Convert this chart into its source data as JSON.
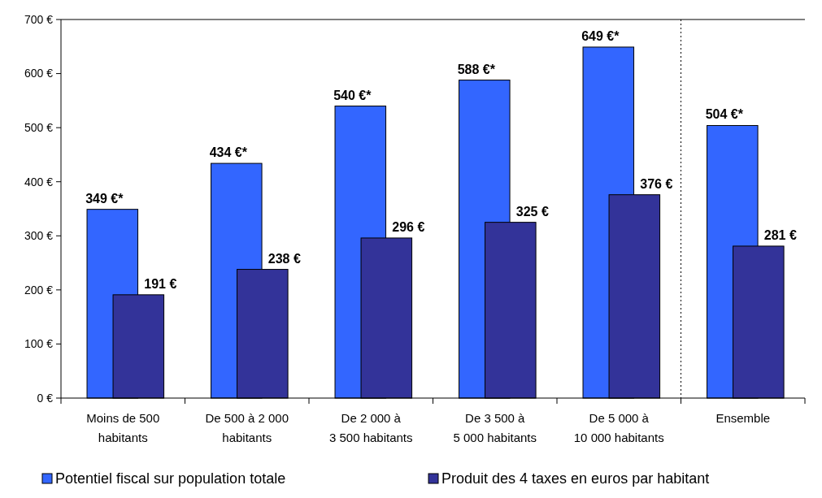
{
  "chart_data": {
    "type": "bar",
    "categories": [
      "Moins de 500\nhabitants",
      "De 500 à 2 000\nhabitants",
      "De 2 000 à\n3 500 habitants",
      "De 3 500 à\n5 000 habitants",
      "De 5 000 à\n10 000 habitants",
      "Ensemble"
    ],
    "series": [
      {
        "name": "Potentiel fiscal sur population totale",
        "color": "#3366ff",
        "values": [
          349,
          434,
          540,
          588,
          649,
          504
        ],
        "value_labels": [
          "349 €*",
          "434 €*",
          "540 €*",
          "588 €*",
          "649 €*",
          "504 €*"
        ]
      },
      {
        "name": "Produit des 4 taxes en euros par habitant",
        "color": "#333399",
        "values": [
          191,
          238,
          296,
          325,
          376,
          281
        ],
        "value_labels": [
          "191 €",
          "238 €",
          "296 €",
          "325 €",
          "376 €",
          "281 €"
        ]
      }
    ],
    "ylim": [
      0,
      700
    ],
    "yticks": [
      {
        "value": 0,
        "label": "0 €"
      },
      {
        "value": 100,
        "label": "100 €"
      },
      {
        "value": 200,
        "label": "200 €"
      },
      {
        "value": 300,
        "label": "300 €"
      },
      {
        "value": 400,
        "label": "400 €"
      },
      {
        "value": 500,
        "label": "500 €"
      },
      {
        "value": 600,
        "label": "600 €"
      },
      {
        "value": 700,
        "label": "700 €"
      }
    ],
    "legend": "bottom",
    "grid": false
  }
}
